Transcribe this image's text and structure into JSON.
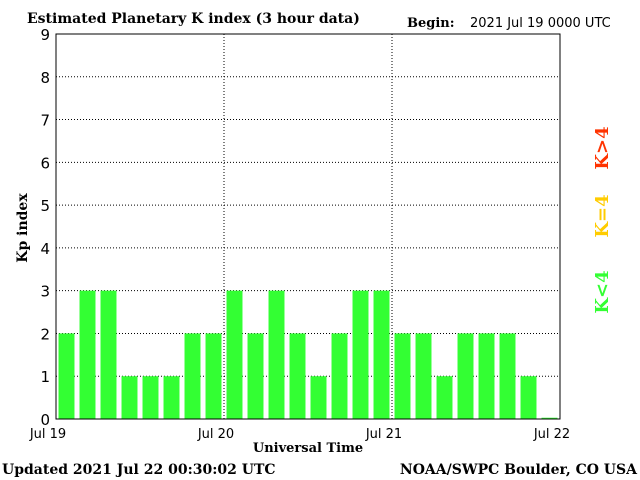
{
  "header": {
    "title": "Estimated Planetary K index (3 hour data)",
    "begin_label": "Begin:",
    "begin_value": "2021 Jul 19 0000 UTC"
  },
  "footer": {
    "updated": "Updated 2021 Jul 22 00:30:02 UTC",
    "source": "NOAA/SWPC Boulder, CO USA"
  },
  "legend": {
    "k_gt4": "K>4",
    "k_eq4": "K=4",
    "k_lt4": "K<4"
  },
  "colors": {
    "bar": "#33ff33",
    "k_gt4": "#ff3300",
    "k_eq4": "#ffcc00",
    "k_lt4": "#33ff33"
  },
  "chart_data": {
    "type": "bar",
    "title": "Estimated Planetary K index (3 hour data)",
    "xlabel": "Universal Time",
    "ylabel": "Kp index",
    "ylim": [
      0,
      9
    ],
    "yticks": [
      "0",
      "1",
      "2",
      "3",
      "4",
      "5",
      "6",
      "7",
      "8",
      "9"
    ],
    "xticks": [
      "Jul 19",
      "Jul 20",
      "Jul 21",
      "Jul 22"
    ],
    "grid": true,
    "values": [
      2,
      3,
      3,
      1,
      1,
      1,
      2,
      2,
      3,
      2,
      3,
      2,
      1,
      2,
      3,
      3,
      2,
      2,
      1,
      2,
      2,
      2,
      1,
      0.03
    ]
  }
}
